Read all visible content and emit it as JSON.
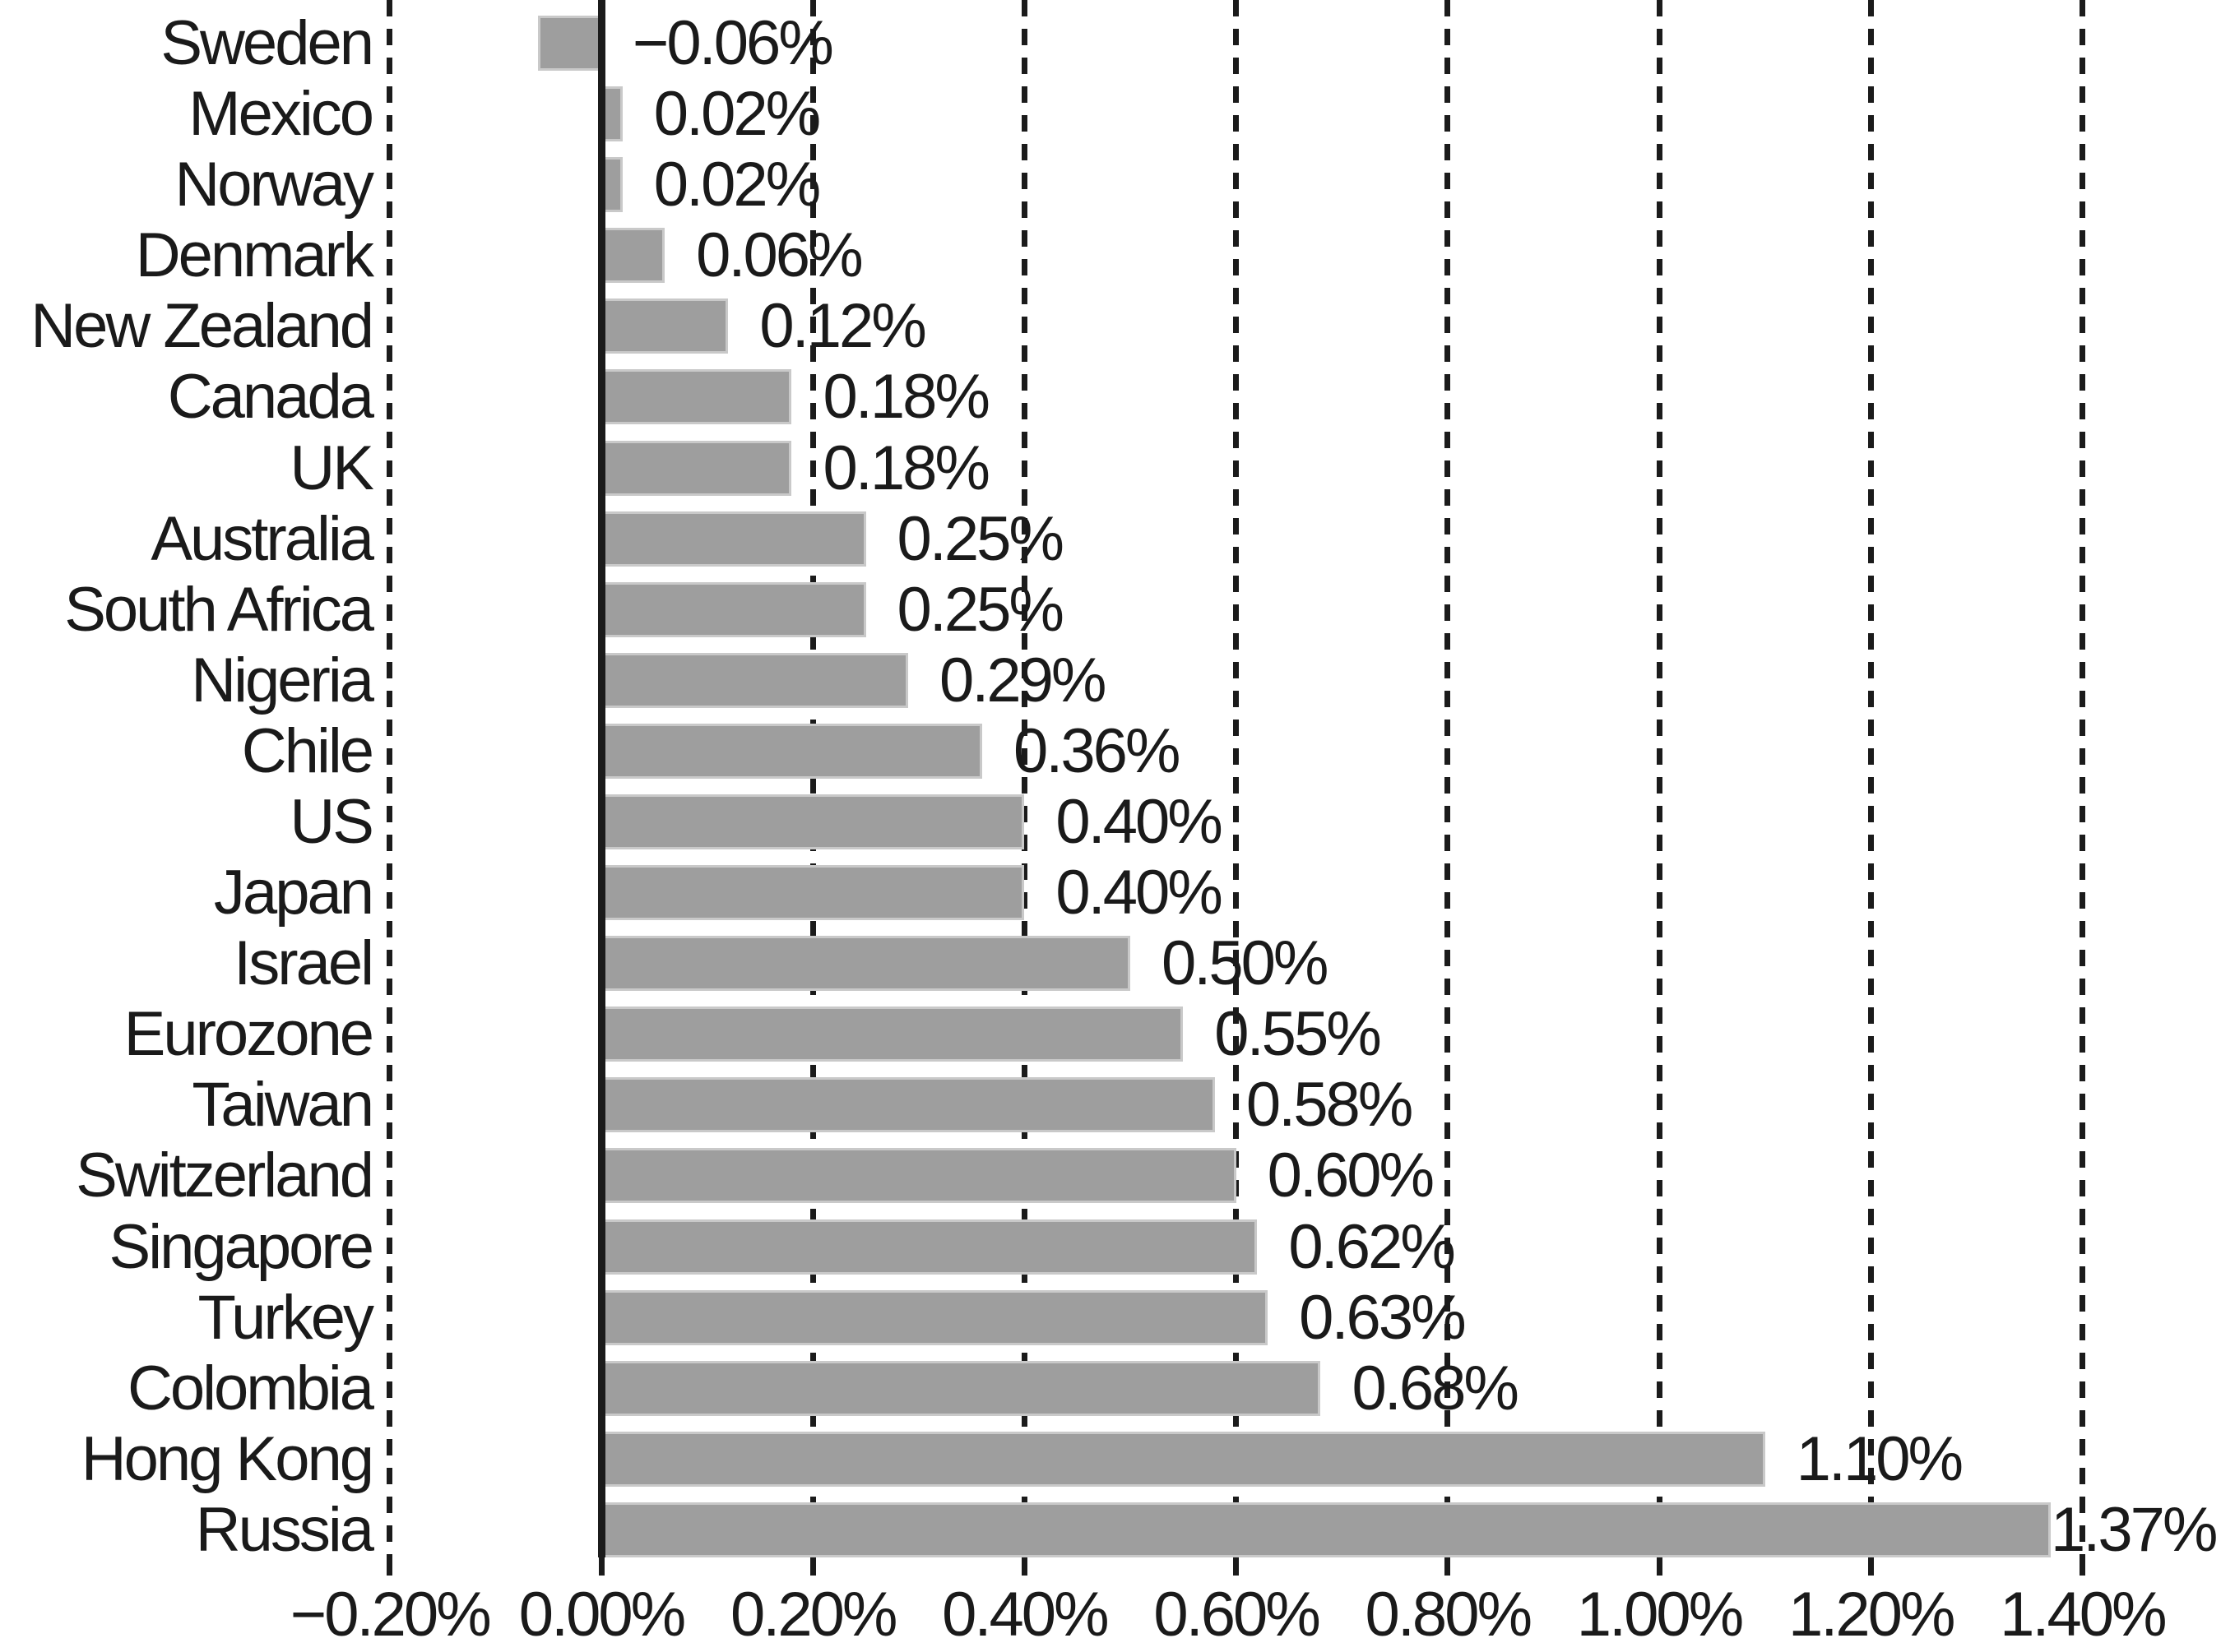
{
  "chart_data": {
    "type": "bar",
    "orientation": "horizontal",
    "categories": [
      "Sweden",
      "Mexico",
      "Norway",
      "Denmark",
      "New Zealand",
      "Canada",
      "UK",
      "Australia",
      "South Africa",
      "Nigeria",
      "Chile",
      "US",
      "Japan",
      "Israel",
      "Eurozone",
      "Taiwan",
      "Switzerland",
      "Singapore",
      "Turkey",
      "Colombia",
      "Hong Kong",
      "Russia"
    ],
    "values": [
      -0.06,
      0.02,
      0.02,
      0.06,
      0.12,
      0.18,
      0.18,
      0.25,
      0.25,
      0.29,
      0.36,
      0.4,
      0.4,
      0.5,
      0.55,
      0.58,
      0.6,
      0.62,
      0.63,
      0.68,
      1.1,
      1.37
    ],
    "bar_labels": [
      "−0.06%",
      "0.02%",
      "0.02%",
      "0.06%",
      "0.12%",
      "0.18%",
      "0.18%",
      "0.25%",
      "0.25%",
      "0.29%",
      "0.36%",
      "0.40%",
      "0.40%",
      "0.50%",
      "0.55%",
      "0.58%",
      "0.60%",
      "0.62%",
      "0.63%",
      "0.68%",
      "1.10%",
      "1.37%"
    ],
    "x_axis": {
      "tick_values": [
        -0.2,
        0.0,
        0.2,
        0.4,
        0.6,
        0.8,
        1.0,
        1.2,
        1.4
      ],
      "tick_labels": [
        "−0.20%",
        "0.00%",
        "0.20%",
        "0.40%",
        "0.60%",
        "0.80%",
        "1.00%",
        "1.20%",
        "1.40%"
      ],
      "unit": "%",
      "min": -0.2,
      "max": 1.4
    },
    "grid": {
      "vertical": true,
      "style": "dashed",
      "zero_line": "solid-bold"
    },
    "legend": null,
    "title": "",
    "colors": {
      "bar": "#9e9e9e",
      "bar_edge": "#c9c9c9",
      "grid_line": "#1b1b1b",
      "text": "#1a1a1a",
      "background": "#ffffff"
    }
  }
}
